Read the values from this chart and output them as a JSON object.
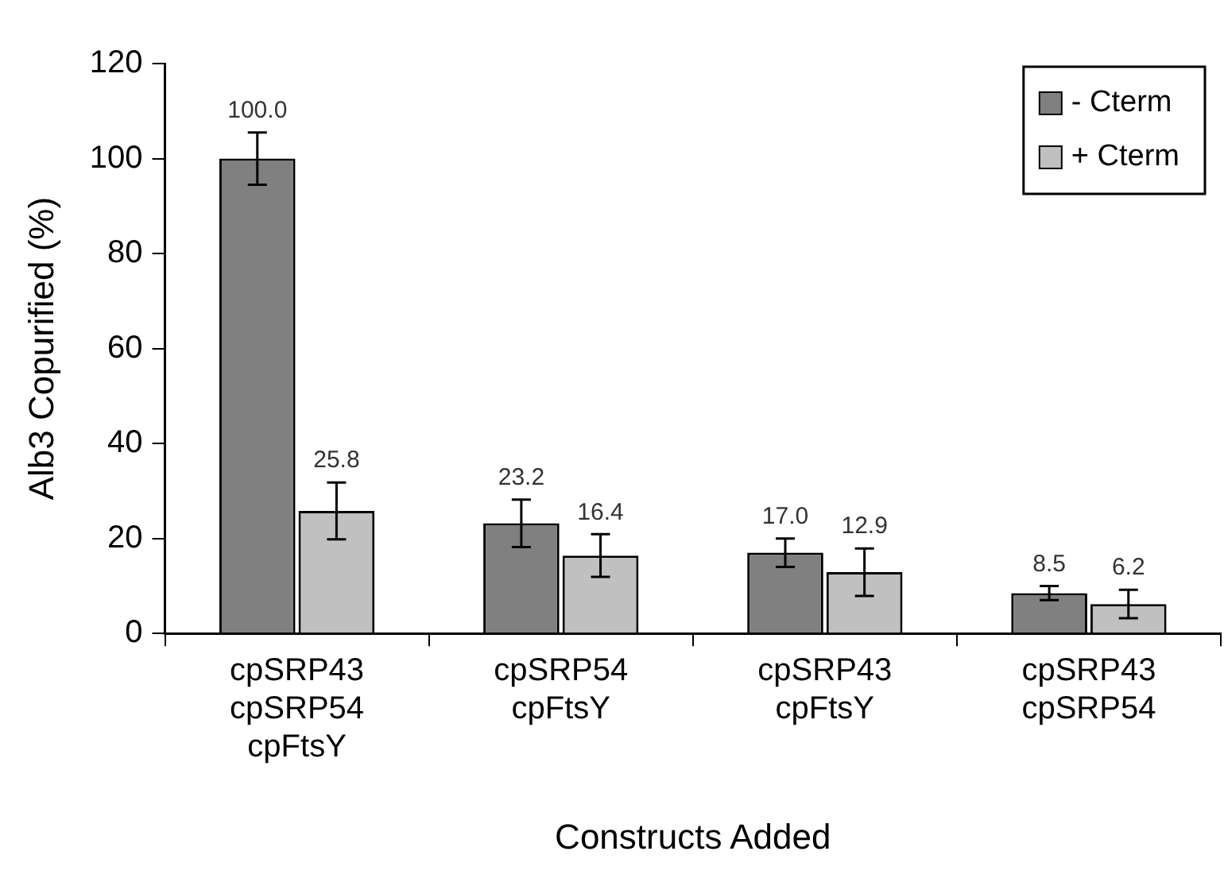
{
  "chart_data": {
    "type": "bar",
    "xlabel": "Constructs Added",
    "ylabel": "Alb3 Copurified (%)",
    "categories": [
      "cpSRP43\ncpSRP54\ncpFtsY",
      "cpSRP54\ncpFtsY",
      "cpSRP43\ncpFtsY",
      "cpSRP43\ncpSRP54"
    ],
    "series": [
      {
        "name": "- Cterm",
        "color": "#808080",
        "values": [
          100.0,
          23.2,
          17.0,
          8.5
        ],
        "errors": [
          5.5,
          5,
          3,
          1.5
        ],
        "value_labels": [
          "100.0",
          "23.2",
          "17.0",
          "8.5"
        ]
      },
      {
        "name": "+ Cterm",
        "color": "#c0c0c0",
        "values": [
          25.8,
          16.4,
          12.9,
          6.2
        ],
        "errors": [
          6,
          4.5,
          5,
          3
        ],
        "value_labels": [
          "25.8",
          "16.4",
          "12.9",
          "6.2"
        ]
      }
    ],
    "ylim": [
      0,
      120
    ],
    "yticks": [
      0,
      20,
      40,
      60,
      80,
      100,
      120
    ],
    "grid": false,
    "legend": "top right"
  }
}
